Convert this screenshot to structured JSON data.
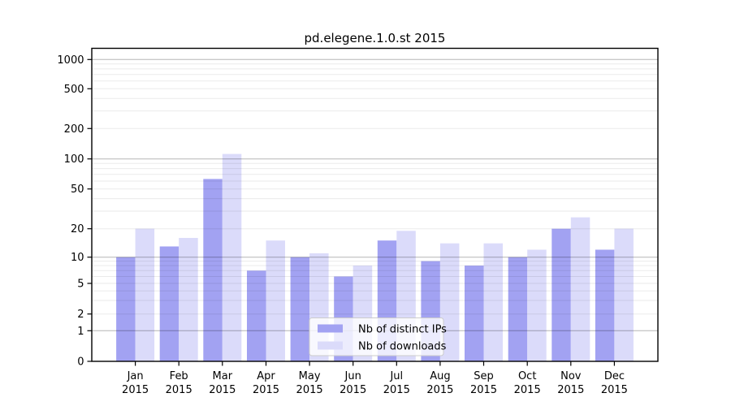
{
  "chart_data": {
    "type": "bar",
    "title": "pd.elegene.1.0.st 2015",
    "categories": [
      "Jan",
      "Feb",
      "Mar",
      "Apr",
      "May",
      "Jun",
      "Jul",
      "Aug",
      "Sep",
      "Oct",
      "Nov",
      "Dec"
    ],
    "category_year_label": "2015",
    "series": [
      {
        "name": "Nb of distinct IPs",
        "color": "#a2a2f2",
        "values": [
          10,
          13,
          63,
          7,
          10,
          6,
          15,
          9,
          8,
          10,
          20,
          12
        ]
      },
      {
        "name": "Nb of downloads",
        "color": "#dbdbfa",
        "values": [
          20,
          16,
          112,
          15,
          11,
          8,
          19,
          14,
          14,
          12,
          26,
          20
        ]
      }
    ],
    "yticks": [
      0,
      1,
      2,
      5,
      10,
      20,
      50,
      100,
      200,
      500,
      1000
    ],
    "yscale": "log-like",
    "ylim": [
      0,
      1000
    ],
    "xlabel": "",
    "ylabel": "",
    "grid": true,
    "legend_position": "lower center",
    "axis_color": "#000000",
    "major_grid_color": "#b5b5b5",
    "minor_grid_color": "#ebebeb"
  }
}
